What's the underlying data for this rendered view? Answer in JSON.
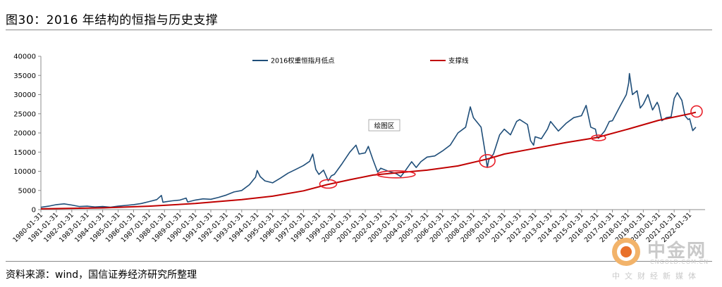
{
  "figure": {
    "title": "图30：2016 年结构的恒指与历史支撑",
    "source": "资料来源：wind，国信证券经济研究所整理"
  },
  "watermark": {
    "name": "中金网",
    "url": "CNGOLD.COM.CN",
    "slogan": "中文财经新媒体"
  },
  "colors": {
    "series1": "#1f4e79",
    "series2": "#c00000",
    "annotation": "#e8202a",
    "axis": "#8c8c8c"
  },
  "chart_data": {
    "type": "line",
    "y_ticks": [
      0,
      5000,
      10000,
      15000,
      20000,
      25000,
      30000,
      35000,
      40000
    ],
    "ylim": [
      0,
      40000
    ],
    "xlim": [
      1980.0,
      2023.0
    ],
    "grid": false,
    "legend": "top",
    "x_tick_labels": [
      "1980-01-31",
      "1981-01-31",
      "1982-01-31",
      "1983-01-31",
      "1984-01-31",
      "1985-01-31",
      "1986-01-31",
      "1987-01-31",
      "1988-01-31",
      "1989-01-31",
      "1990-01-31",
      "1991-01-31",
      "1992-01-31",
      "1993-01-31",
      "1994-01-31",
      "1995-01-31",
      "1996-01-31",
      "1997-01-31",
      "1998-01-31",
      "1999-01-31",
      "2000-01-31",
      "2001-01-31",
      "2002-01-31",
      "2003-01-31",
      "2004-01-31",
      "2005-01-31",
      "2006-01-31",
      "2007-01-31",
      "2008-01-31",
      "2009-01-31",
      "2010-01-31",
      "2011-01-31",
      "2012-01-31",
      "2013-01-31",
      "2014-01-31",
      "2015-01-31",
      "2016-01-31",
      "2017-01-31",
      "2018-01-31",
      "2019-01-31",
      "2020-01-31",
      "2021-01-31",
      "2022-01-31"
    ],
    "plot_note": "绘图区",
    "series": [
      {
        "name": "2016权重恒指月低点",
        "points": [
          [
            1980.0,
            600
          ],
          [
            1980.5,
            900
          ],
          [
            1981.0,
            1300
          ],
          [
            1981.5,
            1500
          ],
          [
            1982.0,
            1200
          ],
          [
            1982.5,
            800
          ],
          [
            1983.0,
            900
          ],
          [
            1983.5,
            700
          ],
          [
            1984.0,
            800
          ],
          [
            1984.5,
            650
          ],
          [
            1985.0,
            900
          ],
          [
            1985.5,
            1100
          ],
          [
            1986.0,
            1300
          ],
          [
            1986.5,
            1600
          ],
          [
            1987.0,
            2100
          ],
          [
            1987.5,
            2600
          ],
          [
            1987.8,
            3700
          ],
          [
            1987.9,
            1900
          ],
          [
            1988.0,
            2000
          ],
          [
            1988.5,
            2300
          ],
          [
            1989.0,
            2500
          ],
          [
            1989.4,
            3000
          ],
          [
            1989.5,
            2000
          ],
          [
            1990.0,
            2500
          ],
          [
            1990.5,
            2800
          ],
          [
            1991.0,
            2700
          ],
          [
            1991.5,
            3200
          ],
          [
            1992.0,
            3800
          ],
          [
            1992.5,
            4600
          ],
          [
            1993.0,
            5000
          ],
          [
            1993.5,
            6500
          ],
          [
            1993.9,
            8500
          ],
          [
            1994.0,
            10200
          ],
          [
            1994.2,
            8600
          ],
          [
            1994.5,
            7500
          ],
          [
            1995.0,
            7000
          ],
          [
            1995.5,
            8200
          ],
          [
            1996.0,
            9500
          ],
          [
            1996.5,
            10500
          ],
          [
            1997.0,
            11500
          ],
          [
            1997.4,
            12600
          ],
          [
            1997.6,
            14500
          ],
          [
            1997.8,
            10500
          ],
          [
            1998.0,
            9200
          ],
          [
            1998.3,
            10300
          ],
          [
            1998.6,
            7500
          ],
          [
            1998.8,
            8800
          ],
          [
            1999.0,
            9200
          ],
          [
            1999.5,
            12000
          ],
          [
            2000.0,
            15000
          ],
          [
            2000.4,
            16800
          ],
          [
            2000.6,
            14500
          ],
          [
            2001.0,
            14800
          ],
          [
            2001.2,
            16500
          ],
          [
            2001.5,
            13000
          ],
          [
            2001.8,
            9800
          ],
          [
            2002.0,
            10800
          ],
          [
            2002.5,
            10000
          ],
          [
            2003.0,
            9400
          ],
          [
            2003.3,
            8600
          ],
          [
            2003.6,
            10200
          ],
          [
            2004.0,
            12500
          ],
          [
            2004.3,
            11000
          ],
          [
            2004.6,
            12500
          ],
          [
            2005.0,
            13700
          ],
          [
            2005.5,
            14000
          ],
          [
            2006.0,
            15300
          ],
          [
            2006.5,
            16800
          ],
          [
            2007.0,
            20000
          ],
          [
            2007.5,
            21500
          ],
          [
            2007.8,
            26800
          ],
          [
            2008.0,
            24000
          ],
          [
            2008.5,
            21500
          ],
          [
            2008.8,
            14000
          ],
          [
            2008.9,
            11000
          ],
          [
            2009.0,
            13000
          ],
          [
            2009.3,
            14500
          ],
          [
            2009.7,
            19500
          ],
          [
            2010.0,
            21000
          ],
          [
            2010.4,
            19500
          ],
          [
            2010.8,
            23000
          ],
          [
            2011.0,
            23500
          ],
          [
            2011.5,
            22200
          ],
          [
            2011.7,
            18000
          ],
          [
            2011.9,
            16800
          ],
          [
            2012.0,
            19000
          ],
          [
            2012.4,
            18500
          ],
          [
            2012.8,
            21000
          ],
          [
            2013.0,
            23000
          ],
          [
            2013.5,
            20500
          ],
          [
            2014.0,
            22500
          ],
          [
            2014.5,
            24000
          ],
          [
            2015.0,
            24500
          ],
          [
            2015.3,
            27200
          ],
          [
            2015.6,
            21500
          ],
          [
            2015.9,
            21000
          ],
          [
            2016.0,
            19000
          ],
          [
            2016.1,
            18600
          ],
          [
            2016.5,
            20500
          ],
          [
            2016.8,
            23000
          ],
          [
            2017.0,
            23200
          ],
          [
            2017.5,
            27000
          ],
          [
            2017.9,
            30000
          ],
          [
            2018.05,
            33000
          ],
          [
            2018.1,
            35500
          ],
          [
            2018.3,
            30000
          ],
          [
            2018.6,
            31000
          ],
          [
            2018.8,
            26500
          ],
          [
            2019.0,
            27500
          ],
          [
            2019.3,
            30000
          ],
          [
            2019.6,
            26000
          ],
          [
            2019.9,
            28000
          ],
          [
            2020.0,
            27000
          ],
          [
            2020.2,
            23200
          ],
          [
            2020.5,
            24000
          ],
          [
            2020.8,
            24200
          ],
          [
            2021.0,
            29000
          ],
          [
            2021.2,
            30500
          ],
          [
            2021.5,
            28500
          ],
          [
            2021.7,
            24500
          ],
          [
            2021.9,
            23500
          ],
          [
            2022.0,
            23700
          ],
          [
            2022.2,
            20600
          ],
          [
            2022.4,
            21500
          ]
        ]
      },
      {
        "name": "支撑线",
        "points": [
          [
            1980.0,
            200
          ],
          [
            1984.0,
            450
          ],
          [
            1987.0,
            900
          ],
          [
            1990.0,
            1600
          ],
          [
            1993.0,
            2600
          ],
          [
            1995.0,
            3500
          ],
          [
            1997.0,
            4900
          ],
          [
            1998.5,
            6500
          ],
          [
            2000.0,
            7800
          ],
          [
            2001.5,
            9000
          ],
          [
            2003.0,
            9600
          ],
          [
            2005.0,
            10300
          ],
          [
            2007.0,
            11400
          ],
          [
            2008.5,
            12800
          ],
          [
            2009.0,
            13300
          ],
          [
            2010.0,
            14500
          ],
          [
            2012.0,
            16000
          ],
          [
            2014.0,
            17500
          ],
          [
            2016.0,
            18800
          ],
          [
            2018.0,
            21000
          ],
          [
            2020.0,
            23300
          ],
          [
            2022.0,
            25000
          ],
          [
            2022.4,
            25400
          ]
        ]
      }
    ]
  }
}
